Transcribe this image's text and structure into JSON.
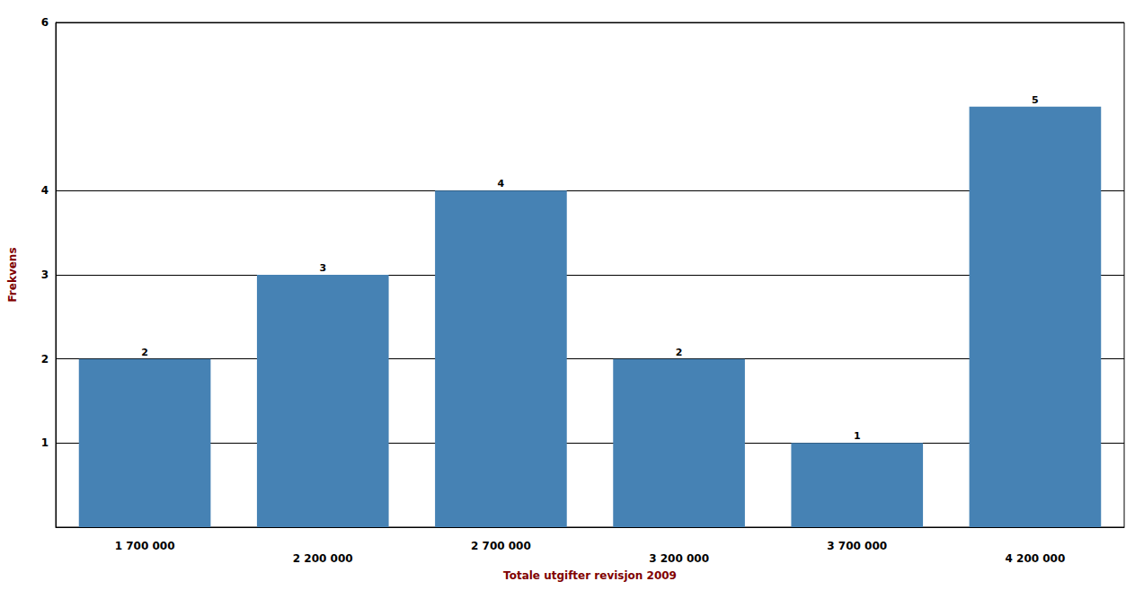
{
  "chart_data": {
    "type": "bar",
    "categories": [
      "1 700 000",
      "2 200 000",
      "2 700 000",
      "3 200 000",
      "3 700 000",
      "4 200 000"
    ],
    "values": [
      2,
      3,
      4,
      2,
      1,
      5
    ],
    "color": "#4682b4",
    "xlabel": "Totale utgifter revisjon 2009",
    "ylabel": "Frekvens",
    "ylim": [
      0,
      6
    ],
    "yticks": [
      1,
      2,
      3,
      4,
      6
    ],
    "grid": true,
    "data_labels": true
  }
}
